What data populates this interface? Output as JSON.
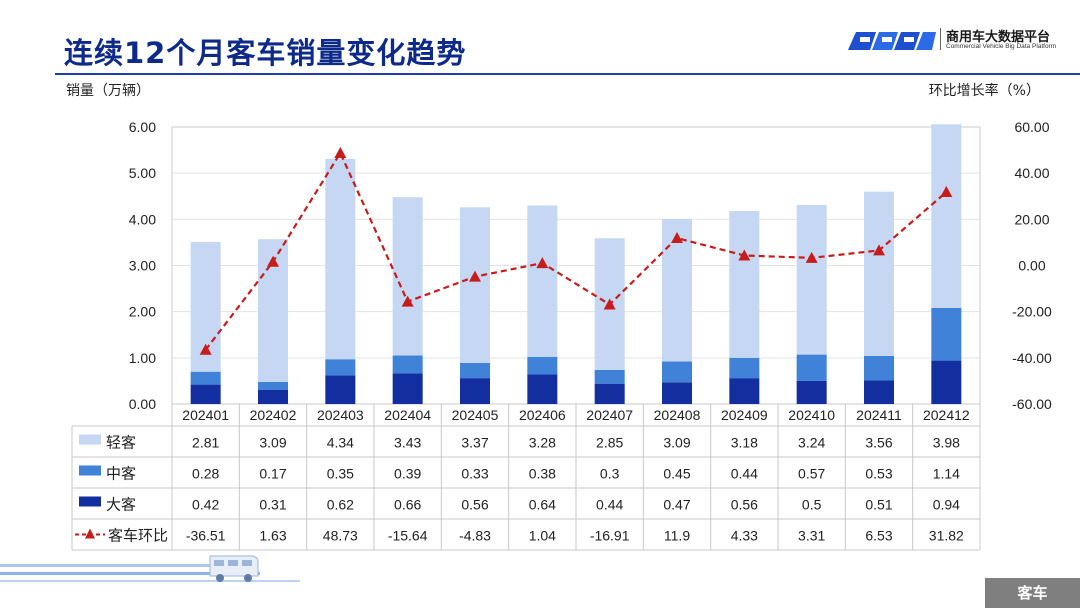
{
  "header": {
    "title": "连续12个月客车销量变化趋势",
    "logo_name": "商用车大数据平台",
    "logo_sub": "Commercial Vehicle Big Data Platform"
  },
  "footer": {
    "tag": "客车"
  },
  "colors": {
    "light": "#c5d7f2",
    "mid": "#3f82d8",
    "dark": "#132e9f",
    "line": "#c61c1c",
    "title": "#0d2a8a"
  },
  "chart_data": {
    "type": "bar",
    "stacked": true,
    "ylabel": "销量（万辆）",
    "y2label": "环比增长率（%）",
    "ylim": [
      0,
      6
    ],
    "y2lim": [
      -60,
      60
    ],
    "yticks": [
      "0.00",
      "1.00",
      "2.00",
      "3.00",
      "4.00",
      "5.00",
      "6.00"
    ],
    "y2ticks": [
      "-60.00",
      "-40.00",
      "-20.00",
      "0.00",
      "20.00",
      "40.00",
      "60.00"
    ],
    "categories": [
      "202401",
      "202402",
      "202403",
      "202404",
      "202405",
      "202406",
      "202407",
      "202408",
      "202409",
      "202410",
      "202411",
      "202412"
    ],
    "series": [
      {
        "name": "轻客",
        "kind": "bar",
        "values": [
          2.81,
          3.09,
          4.34,
          3.43,
          3.37,
          3.28,
          2.85,
          3.09,
          3.18,
          3.24,
          3.56,
          3.98
        ],
        "labels": [
          "2.81",
          "3.09",
          "4.34",
          "3.43",
          "3.37",
          "3.28",
          "2.85",
          "3.09",
          "3.18",
          "3.24",
          "3.56",
          "3.98"
        ]
      },
      {
        "name": "中客",
        "kind": "bar",
        "values": [
          0.28,
          0.17,
          0.35,
          0.39,
          0.33,
          0.38,
          0.3,
          0.45,
          0.44,
          0.57,
          0.53,
          1.14
        ],
        "labels": [
          "0.28",
          "0.17",
          "0.35",
          "0.39",
          "0.33",
          "0.38",
          "0.3",
          "0.45",
          "0.44",
          "0.57",
          "0.53",
          "1.14"
        ]
      },
      {
        "name": "大客",
        "kind": "bar",
        "values": [
          0.42,
          0.31,
          0.62,
          0.66,
          0.56,
          0.64,
          0.44,
          0.47,
          0.56,
          0.5,
          0.51,
          0.94
        ],
        "labels": [
          "0.42",
          "0.31",
          "0.62",
          "0.66",
          "0.56",
          "0.64",
          "0.44",
          "0.47",
          "0.56",
          "0.5",
          "0.51",
          "0.94"
        ]
      },
      {
        "name": "客车环比",
        "kind": "line",
        "axis": "right",
        "values": [
          -36.51,
          1.63,
          48.73,
          -15.64,
          -4.83,
          1.04,
          -16.91,
          11.9,
          4.33,
          3.31,
          6.53,
          31.82
        ],
        "labels": [
          "-36.51",
          "1.63",
          "48.73",
          "-15.64",
          "-4.83",
          "1.04",
          "-16.91",
          "11.9",
          "4.33",
          "3.31",
          "6.53",
          "31.82"
        ]
      }
    ],
    "legend_position": "table-below"
  }
}
